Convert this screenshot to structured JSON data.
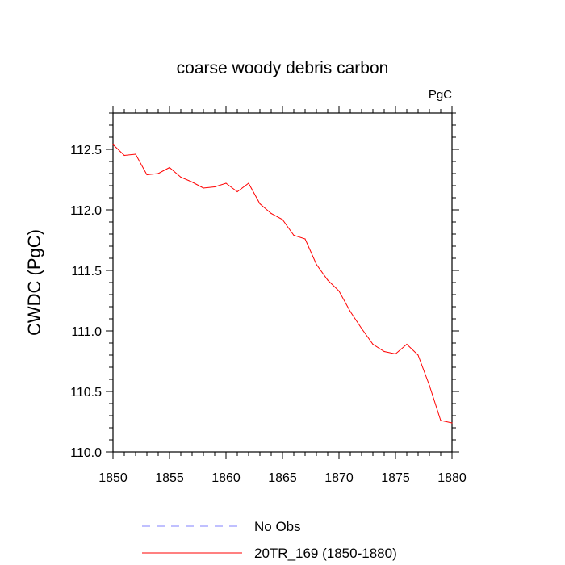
{
  "chart_data": {
    "type": "line",
    "title": "coarse woody debris carbon",
    "units_label": "PgC",
    "xlabel": "",
    "ylabel": "CWDC  (PgC)",
    "xlim": [
      1850,
      1880
    ],
    "ylim": [
      110.0,
      112.8
    ],
    "x_ticks": [
      1850,
      1855,
      1860,
      1865,
      1870,
      1875,
      1880
    ],
    "y_ticks": [
      110.0,
      110.5,
      111.0,
      111.5,
      112.0,
      112.5
    ],
    "x_tick_labels": [
      "1850",
      "1855",
      "1860",
      "1865",
      "1870",
      "1875",
      "1880"
    ],
    "y_tick_labels": [
      "110.0",
      "110.5",
      "111.0",
      "111.5",
      "112.0",
      "112.5"
    ],
    "grid": false,
    "legend_position": "bottom",
    "series": [
      {
        "name": "No Obs",
        "color": "#8080ff",
        "dash": true,
        "x": [],
        "y": []
      },
      {
        "name": "20TR_169 (1850-1880)",
        "color": "#ff0000",
        "dash": false,
        "x": [
          1850,
          1851,
          1852,
          1853,
          1854,
          1855,
          1856,
          1857,
          1858,
          1859,
          1860,
          1861,
          1862,
          1863,
          1864,
          1865,
          1866,
          1867,
          1868,
          1869,
          1870,
          1871,
          1872,
          1873,
          1874,
          1875,
          1876,
          1877,
          1878,
          1879,
          1880
        ],
        "y": [
          112.54,
          112.45,
          112.46,
          112.29,
          112.3,
          112.35,
          112.27,
          112.23,
          112.18,
          112.19,
          112.22,
          112.15,
          112.22,
          112.05,
          111.97,
          111.92,
          111.79,
          111.76,
          111.55,
          111.42,
          111.33,
          111.16,
          111.02,
          110.89,
          110.83,
          110.81,
          110.89,
          110.8,
          110.55,
          110.26,
          110.24
        ]
      }
    ]
  }
}
